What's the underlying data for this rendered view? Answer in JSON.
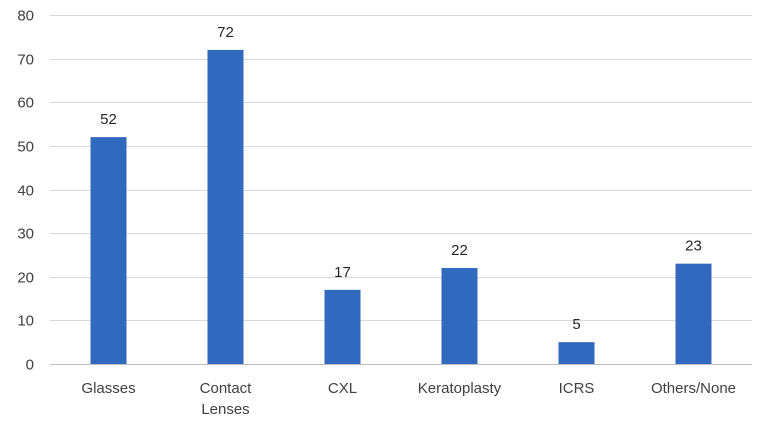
{
  "chart_data": {
    "type": "bar",
    "title": "",
    "xlabel": "",
    "ylabel": "",
    "categories": [
      [
        "Glasses"
      ],
      [
        "Contact",
        "Lenses"
      ],
      [
        "CXL"
      ],
      [
        "Keratoplasty"
      ],
      [
        "ICRS"
      ],
      [
        "Others/None"
      ]
    ],
    "values": [
      52,
      72,
      17,
      22,
      5,
      23
    ],
    "data_labels": [
      "52",
      "72",
      "17",
      "22",
      "5",
      "23"
    ],
    "ylim": [
      0,
      80
    ],
    "yticks": [
      0,
      10,
      20,
      30,
      40,
      50,
      60,
      70,
      80
    ],
    "grid": true,
    "legend": "none",
    "colors": {
      "bar": "#3069be"
    }
  }
}
